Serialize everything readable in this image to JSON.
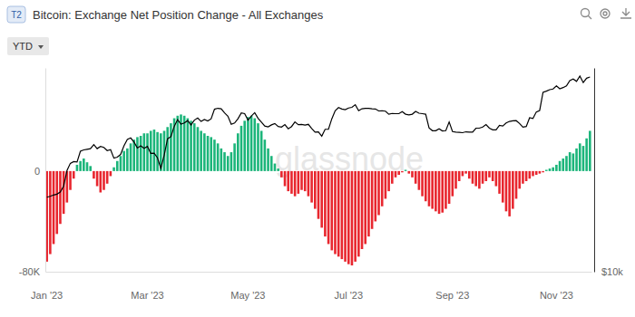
{
  "chart_data": {
    "type": "bar",
    "title": "Bitcoin: Exchange Net Position Change - All Exchanges",
    "badge": "T2",
    "range_button": "YTD",
    "watermark": "glassnode",
    "categories": [
      "Jan '23",
      null,
      null,
      null,
      null,
      null,
      null,
      null,
      null,
      null,
      null,
      null,
      null,
      null,
      null,
      null,
      null,
      null,
      null,
      null,
      null,
      null,
      null,
      null,
      null,
      null,
      null,
      null,
      null,
      null,
      "Mar '23",
      null,
      null,
      null,
      null,
      null,
      null,
      null,
      null,
      null,
      null,
      null,
      null,
      null,
      null,
      null,
      null,
      null,
      null,
      null,
      null,
      null,
      null,
      null,
      null,
      null,
      null,
      null,
      null,
      null,
      "May '23",
      null,
      null,
      null,
      null,
      null,
      null,
      null,
      null,
      null,
      null,
      null,
      null,
      null,
      null,
      null,
      null,
      null,
      null,
      null,
      null,
      null,
      null,
      null,
      null,
      null,
      null,
      null,
      null,
      null,
      "Jul '23",
      null,
      null,
      null,
      null,
      null,
      null,
      null,
      null,
      null,
      null,
      null,
      null,
      null,
      null,
      null,
      null,
      null,
      null,
      null,
      null,
      null,
      null,
      null,
      null,
      null,
      null,
      null,
      null,
      null,
      null,
      "Sep '23",
      null,
      null,
      null,
      null,
      null,
      null,
      null,
      null,
      null,
      null,
      null,
      null,
      null,
      null,
      null,
      null,
      null,
      null,
      null,
      null,
      null,
      null,
      null,
      null,
      null,
      null,
      null,
      null,
      null,
      null,
      "Nov '23",
      null,
      null,
      null,
      null,
      null,
      null,
      null,
      null,
      null,
      null
    ],
    "series": [
      {
        "type": "bar",
        "colors": [
          "#e8262e",
          "#e8262e",
          "#e8262e",
          "#e8262e",
          "#e8262e",
          "#e8262e",
          "#e8262e",
          "#e8262e",
          "#e8262e",
          "#1bb57a",
          "#1bb57a",
          "#1bb57a",
          "#1bb57a",
          "#1bb57a",
          "#e8262e",
          "#e8262e",
          "#e8262e",
          "#e8262e",
          "#e8262e",
          "#e8262e",
          "#1bb57a",
          "#1bb57a",
          "#1bb57a",
          "#1bb57a",
          "#1bb57a",
          "#1bb57a",
          "#1bb57a",
          "#1bb57a",
          "#1bb57a",
          "#1bb57a",
          "#1bb57a",
          "#1bb57a",
          "#1bb57a",
          "#1bb57a",
          "#1bb57a",
          "#1bb57a",
          "#1bb57a",
          "#1bb57a",
          "#1bb57a",
          "#1bb57a",
          "#1bb57a",
          "#1bb57a",
          "#1bb57a",
          "#1bb57a",
          "#1bb57a",
          "#1bb57a",
          "#1bb57a",
          "#1bb57a",
          "#1bb57a",
          "#1bb57a",
          "#1bb57a",
          "#1bb57a",
          "#1bb57a",
          "#1bb57a",
          "#1bb57a",
          "#1bb57a",
          "#1bb57a",
          "#1bb57a",
          "#1bb57a",
          "#1bb57a",
          "#1bb57a",
          "#1bb57a",
          "#1bb57a",
          "#1bb57a",
          "#1bb57a",
          "#1bb57a",
          "#1bb57a",
          "#1bb57a",
          "#1bb57a",
          "#1bb57a",
          "#e8262e",
          "#e8262e",
          "#e8262e",
          "#e8262e",
          "#e8262e",
          "#e8262e",
          "#e8262e",
          "#e8262e",
          "#e8262e",
          "#e8262e",
          "#e8262e",
          "#e8262e",
          "#e8262e",
          "#e8262e",
          "#e8262e",
          "#e8262e",
          "#e8262e",
          "#e8262e",
          "#e8262e",
          "#e8262e",
          "#e8262e",
          "#e8262e",
          "#e8262e",
          "#e8262e",
          "#e8262e",
          "#e8262e",
          "#e8262e",
          "#e8262e",
          "#e8262e",
          "#e8262e",
          "#e8262e",
          "#e8262e",
          "#e8262e",
          "#e8262e",
          "#e8262e",
          "#e8262e",
          "#e8262e",
          "#1bb57a",
          "#e8262e",
          "#e8262e",
          "#e8262e",
          "#e8262e",
          "#e8262e",
          "#e8262e",
          "#e8262e",
          "#e8262e",
          "#e8262e",
          "#e8262e",
          "#e8262e",
          "#e8262e",
          "#e8262e",
          "#e8262e",
          "#e8262e",
          "#e8262e",
          "#e8262e",
          "#e8262e",
          "#e8262e",
          "#e8262e",
          "#e8262e",
          "#e8262e",
          "#e8262e",
          "#e8262e",
          "#e8262e",
          "#e8262e",
          "#e8262e",
          "#e8262e",
          "#e8262e",
          "#e8262e",
          "#e8262e",
          "#e8262e",
          "#e8262e",
          "#e8262e",
          "#e8262e",
          "#e8262e",
          "#e8262e",
          "#e8262e",
          "#e8262e",
          "#e8262e",
          "#e8262e",
          "#1bb57a",
          "#1bb57a",
          "#1bb57a",
          "#1bb57a",
          "#1bb57a",
          "#1bb57a",
          "#1bb57a",
          "#1bb57a",
          "#1bb57a",
          "#1bb57a",
          "#1bb57a",
          "#1bb57a",
          "#1bb57a",
          "#1bb57a"
        ],
        "values": [
          -72000,
          -66000,
          -58000,
          -50000,
          -42000,
          -34000,
          -25000,
          -15000,
          -6000,
          5000,
          8000,
          10000,
          7000,
          4000,
          -6000,
          -12000,
          -17000,
          -15000,
          -10000,
          -4000,
          3000,
          8000,
          12000,
          16000,
          18000,
          22000,
          25000,
          27000,
          28000,
          30000,
          30000,
          32000,
          33000,
          31000,
          30000,
          32000,
          35000,
          38000,
          42000,
          44000,
          45000,
          44000,
          42000,
          40000,
          38000,
          35000,
          32000,
          30000,
          28000,
          27000,
          25000,
          22000,
          18000,
          15000,
          12000,
          15000,
          22000,
          30000,
          36000,
          40000,
          43000,
          44000,
          42000,
          38000,
          32000,
          25000,
          18000,
          12000,
          6000,
          2000,
          -5000,
          -12000,
          -16000,
          -18000,
          -20000,
          -18000,
          -15000,
          -16000,
          -20000,
          -25000,
          -30000,
          -38000,
          -45000,
          -52000,
          -58000,
          -63000,
          -66000,
          -68000,
          -70000,
          -72000,
          -74000,
          -75000,
          -72000,
          -68000,
          -62000,
          -58000,
          -52000,
          -46000,
          -40000,
          -35000,
          -28000,
          -22000,
          -16000,
          -10000,
          -5000,
          -3000,
          -1000,
          1000,
          -2000,
          -5000,
          -10000,
          -15000,
          -20000,
          -24000,
          -28000,
          -30000,
          -32000,
          -34000,
          -33000,
          -30000,
          -26000,
          -20000,
          -14000,
          -8000,
          -4000,
          -2000,
          -6000,
          -10000,
          -12000,
          -14000,
          -10000,
          -8000,
          -5000,
          -8000,
          -12000,
          -18000,
          -25000,
          -32000,
          -36000,
          -30000,
          -22000,
          -14000,
          -10000,
          -8000,
          -6000,
          -4000,
          -3000,
          -2000,
          -1000,
          1000,
          2000,
          3000,
          5000,
          8000,
          10000,
          12000,
          15000,
          14000,
          18000,
          22000,
          20000,
          26000,
          32000
        ]
      },
      {
        "type": "line",
        "color": "#000000",
        "axis": "y2",
        "values": [
          16600,
          16700,
          16850,
          16950,
          17200,
          17900,
          19900,
          20900,
          21150,
          21100,
          22700,
          22900,
          23000,
          23100,
          23750,
          23100,
          23450,
          23300,
          22800,
          22950,
          21650,
          21800,
          22200,
          23550,
          24600,
          24850,
          24150,
          23200,
          23550,
          23150,
          23450,
          22350,
          22400,
          21700,
          20200,
          22100,
          24700,
          25050,
          26900,
          28150,
          27300,
          27500,
          27950,
          27150,
          28050,
          28450,
          27800,
          28150,
          27900,
          28300,
          30200,
          30400,
          30300,
          29450,
          28800,
          27250,
          27500,
          28300,
          29450,
          29300,
          28050,
          28850,
          29500,
          28400,
          27650,
          26950,
          26800,
          27150,
          27400,
          26850,
          26750,
          27200,
          26450,
          26850,
          27700,
          27200,
          27250,
          27100,
          27250,
          26500,
          25850,
          25900,
          25150,
          26350,
          26350,
          28300,
          29900,
          30550,
          30250,
          30100,
          30450,
          30600,
          31150,
          29900,
          30300,
          30400,
          30400,
          30300,
          30250,
          29850,
          29900,
          29800,
          29200,
          29350,
          29300,
          29300,
          29700,
          29200,
          29050,
          29200,
          29750,
          29400,
          29300,
          29200,
          26600,
          26100,
          26100,
          26450,
          26050,
          26100,
          27700,
          25950,
          25850,
          25800,
          25750,
          25900,
          25850,
          25850,
          26550,
          26550,
          26750,
          27200,
          26550,
          26250,
          26250,
          27050,
          26950,
          27500,
          27800,
          27900,
          27950,
          27400,
          26750,
          26850,
          28500,
          28350,
          29650,
          29950,
          33900,
          34150,
          34500,
          34650,
          35400,
          34700,
          35000,
          35400,
          36700,
          37100,
          36500,
          37850,
          36200,
          37300,
          37600
        ]
      }
    ],
    "ylim": [
      -80000,
      82000
    ],
    "yticks": [
      {
        "value": -80000,
        "label": "-80K"
      },
      0
    ],
    "y2lim": [
      10000,
      40000
    ],
    "y2ticks": [
      {
        "value": 10000,
        "label": "$10k"
      }
    ],
    "log": "y2",
    "grid": false
  }
}
